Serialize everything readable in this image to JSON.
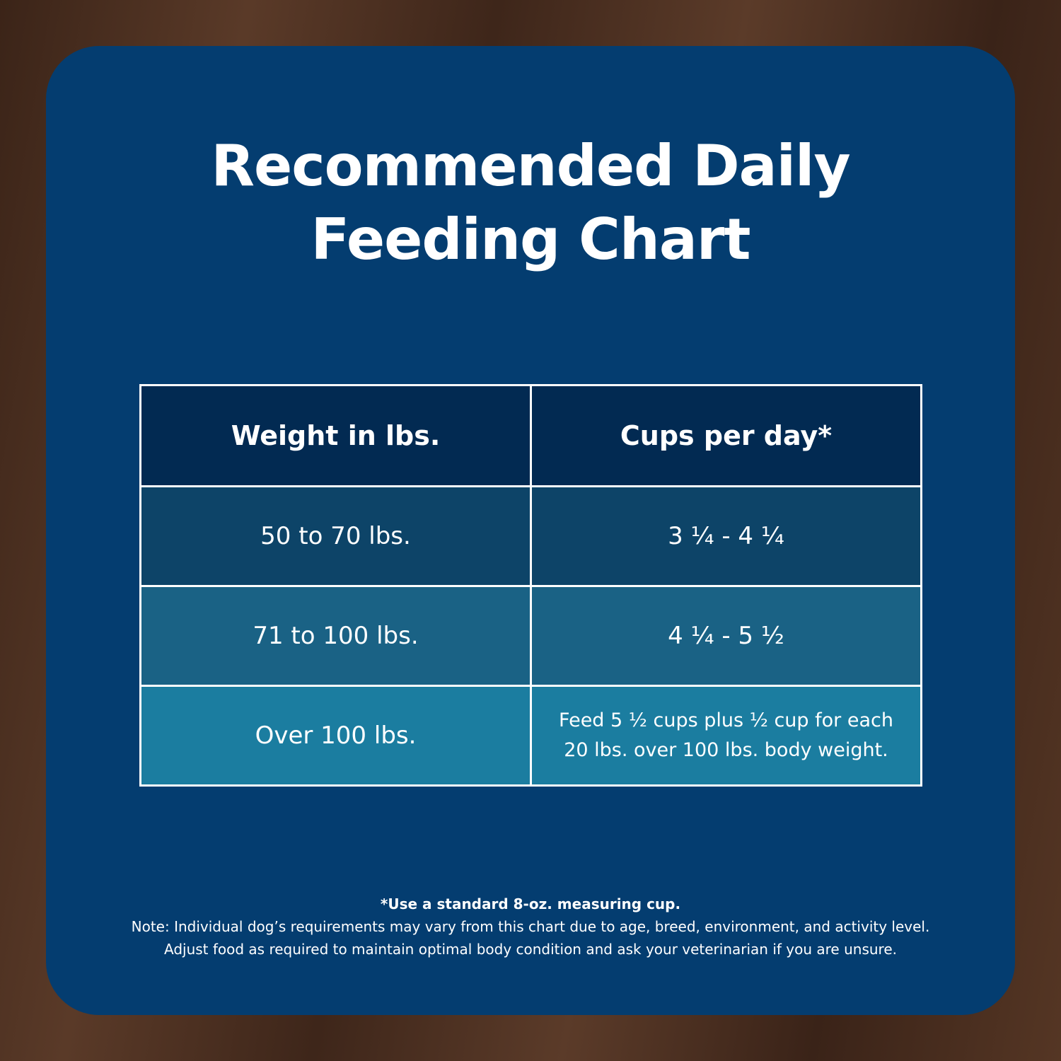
{
  "title": {
    "line1": "Recommended Daily",
    "line2": "Feeding Chart"
  },
  "table": {
    "headers": [
      "Weight in lbs.",
      "Cups per day*"
    ],
    "rows": [
      [
        "50 to 70 lbs.",
        "3 ¼ - 4 ¼"
      ],
      [
        "71 to 100 lbs.",
        "4 ¼ - 5 ½"
      ],
      [
        "Over 100 lbs.",
        "Feed 5 ½ cups plus ½ cup for each 20 lbs. over 100 lbs. body weight."
      ]
    ]
  },
  "notes": {
    "footnote": "*Use a standard 8-oz. measuring cup.",
    "line1": "Note: Individual dog’s requirements may vary from this chart due to age, breed, environment, and activity level.",
    "line2": "Adjust food as required to maintain optimal body condition and ask your veterinarian if you are unsure."
  },
  "colors": {
    "panel": "#043d70",
    "header": "#022a52",
    "row1": "#0d4468",
    "row2": "#1a6285",
    "row3": "#1b7da0",
    "background": "#4a2f20"
  }
}
